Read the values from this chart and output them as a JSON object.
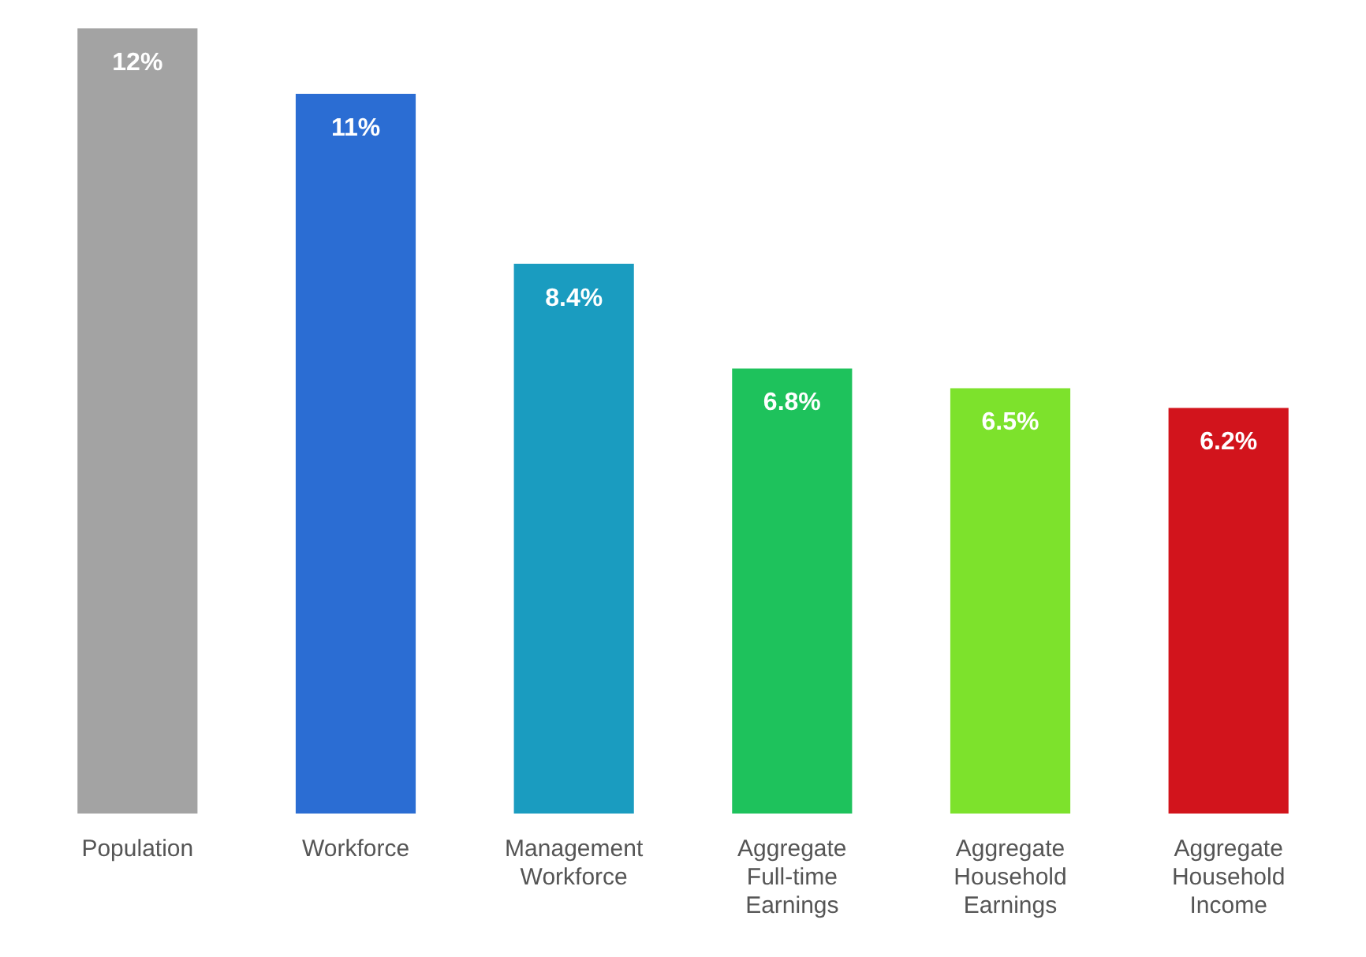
{
  "chart_data": {
    "type": "bar",
    "categories": [
      "Population",
      "Workforce",
      "Management Workforce",
      "Aggregate Full-time Earnings",
      "Aggregate Household Earnings",
      "Aggregate Household Income"
    ],
    "values": [
      12,
      11,
      8.4,
      6.8,
      6.5,
      6.2
    ],
    "value_labels": [
      "12%",
      "11%",
      "8.4%",
      "6.8%",
      "6.5%",
      "6.2%"
    ],
    "colors": [
      "#a3a3a3",
      "#2b6dd3",
      "#1a9cc0",
      "#1ec25c",
      "#7de22c",
      "#d2141c"
    ],
    "grid": false,
    "legend": false
  }
}
